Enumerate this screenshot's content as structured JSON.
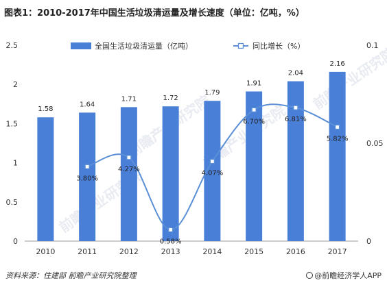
{
  "title": "图表1：2010-2017年中国生活垃圾清运量及增长速度（单位：亿吨，%）",
  "footer": {
    "source": "资料来源：住建部  前瞻产业研究院整理",
    "brand": "@前瞻经济学人APP"
  },
  "watermark": "前瞻产业研究院",
  "colors": {
    "bar": "#4a7fd8",
    "line": "#5b8fd6",
    "marker_fill": "#ffffff",
    "marker_stroke": "#5b8fd6"
  },
  "chart_data": {
    "type": "bar",
    "title": "图表1：2010-2017年中国生活垃圾清运量及增长速度（单位：亿吨，%）",
    "categories": [
      "2010",
      "2011",
      "2012",
      "2013",
      "2014",
      "2015",
      "2016",
      "2017"
    ],
    "series": [
      {
        "name": "全国生活垃圾清运量（亿吨）",
        "type": "bar",
        "axis": "left",
        "values": [
          1.58,
          1.64,
          1.71,
          1.72,
          1.79,
          1.91,
          2.04,
          2.16
        ],
        "labels": [
          "1.58",
          "1.64",
          "1.71",
          "1.72",
          "1.79",
          "1.91",
          "2.04",
          "2.16"
        ]
      },
      {
        "name": "同比增长（%）",
        "type": "line",
        "axis": "right",
        "smooth": true,
        "x": [
          "2011",
          "2012",
          "2013",
          "2014",
          "2015",
          "2016",
          "2017"
        ],
        "values": [
          0.038,
          0.0427,
          0.0058,
          0.0407,
          0.067,
          0.0681,
          0.0582
        ],
        "labels": [
          "3.80%",
          "4.27%",
          "0.58%",
          "4.07%",
          "6.70%",
          "6.81%",
          "5.82%"
        ]
      }
    ],
    "y_left": {
      "ylim": [
        0,
        2.5
      ],
      "ticks": [
        "0",
        "0.5",
        "1",
        "1.5",
        "2",
        "2.5"
      ]
    },
    "y_right": {
      "ylim": [
        0,
        0.1
      ],
      "ticks": [
        "0",
        "0.05",
        "0.1"
      ]
    },
    "grid": false,
    "legend": "top-center"
  }
}
